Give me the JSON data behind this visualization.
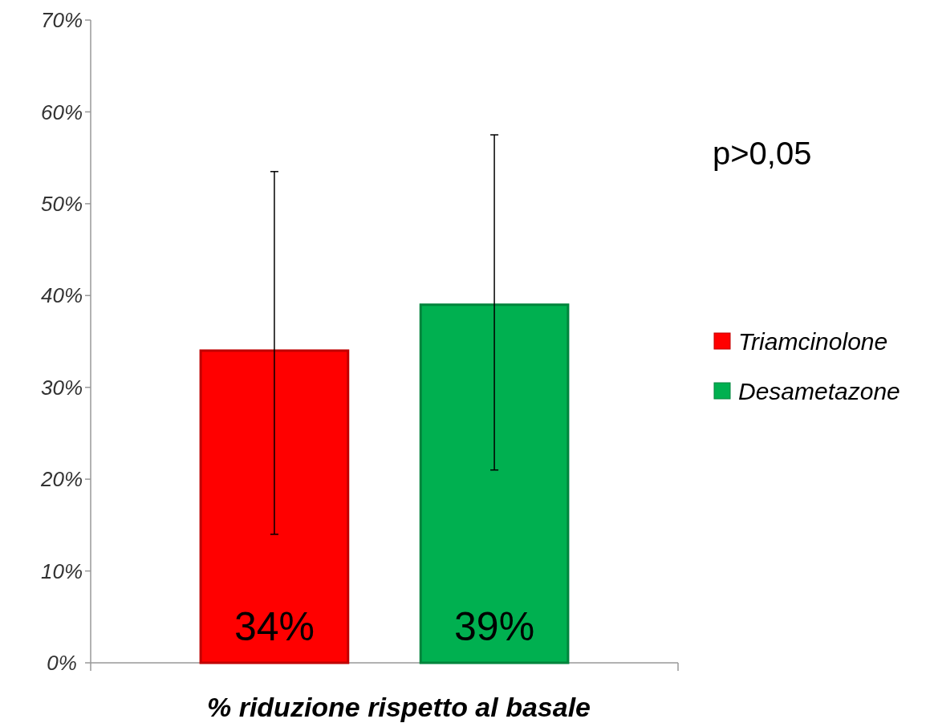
{
  "chart_data": {
    "type": "bar",
    "xlabel": "% riduzione rispetto al basale",
    "categories": [
      null
    ],
    "series": [
      {
        "name": "Triamcinolone",
        "color": "#ff0000",
        "values": [
          34
        ],
        "errors": [
          [
            14,
            53.5
          ]
        ],
        "value_labels": [
          "34%"
        ]
      },
      {
        "name": "Desametazone",
        "color": "#00b050",
        "values": [
          39
        ],
        "errors": [
          [
            21,
            57.5
          ]
        ],
        "value_labels": [
          "39%"
        ]
      }
    ],
    "ylim": [
      0,
      70
    ],
    "yticks": [
      {
        "value": 0,
        "label": "0%"
      },
      {
        "value": 10,
        "label": "10%"
      },
      {
        "value": 20,
        "label": "20%"
      },
      {
        "value": 30,
        "label": "30%"
      },
      {
        "value": 40,
        "label": "40%"
      },
      {
        "value": 50,
        "label": "50%"
      },
      {
        "value": 60,
        "label": "60%"
      },
      {
        "value": 70,
        "label": "70%"
      }
    ],
    "legend": "right",
    "grid": false,
    "annotations": [
      "p>0,05"
    ]
  }
}
